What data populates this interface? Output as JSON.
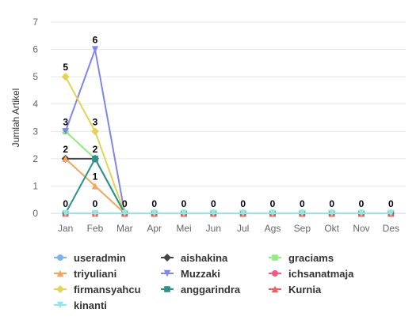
{
  "chart_data": {
    "type": "line",
    "ylabel": "Jumlah Artikel",
    "ylim": [
      0,
      7
    ],
    "yticks": [
      0,
      1,
      2,
      3,
      4,
      5,
      6,
      7
    ],
    "categories": [
      "Jan",
      "Feb",
      "Mar",
      "Apr",
      "Mei",
      "Jun",
      "Jul",
      "Ags",
      "Sep",
      "Okt",
      "Nov",
      "Des"
    ],
    "grid": "horizontal",
    "legend_position": "bottom",
    "series": [
      {
        "name": "useradmin",
        "color": "#7cb5ec",
        "marker": "circle",
        "values": [
          0,
          0,
          0,
          0,
          0,
          0,
          0,
          0,
          0,
          0,
          0,
          0
        ]
      },
      {
        "name": "aishakina",
        "color": "#434348",
        "marker": "diamond",
        "values": [
          2,
          2,
          0,
          0,
          0,
          0,
          0,
          0,
          0,
          0,
          0,
          0
        ]
      },
      {
        "name": "graciams",
        "color": "#90ed7d",
        "marker": "square",
        "values": [
          3,
          2,
          0,
          0,
          0,
          0,
          0,
          0,
          0,
          0,
          0,
          0
        ]
      },
      {
        "name": "triyuliani",
        "color": "#f7a35c",
        "marker": "triangle",
        "values": [
          2,
          1,
          0,
          0,
          0,
          0,
          0,
          0,
          0,
          0,
          0,
          0
        ]
      },
      {
        "name": "Muzzaki",
        "color": "#8085e9",
        "marker": "triangle-down",
        "values": [
          3,
          6,
          0,
          0,
          0,
          0,
          0,
          0,
          0,
          0,
          0,
          0
        ]
      },
      {
        "name": "ichsanatmaja",
        "color": "#f15c80",
        "marker": "circle",
        "values": [
          0,
          0,
          0,
          0,
          0,
          0,
          0,
          0,
          0,
          0,
          0,
          0
        ]
      },
      {
        "name": "firmansyahcu",
        "color": "#e4d354",
        "marker": "diamond",
        "values": [
          5,
          3,
          0,
          0,
          0,
          0,
          0,
          0,
          0,
          0,
          0,
          0
        ]
      },
      {
        "name": "anggarindra",
        "color": "#2b908f",
        "marker": "square",
        "values": [
          0,
          2,
          0,
          0,
          0,
          0,
          0,
          0,
          0,
          0,
          0,
          0
        ]
      },
      {
        "name": "Kurnia",
        "color": "#f45b5b",
        "marker": "triangle",
        "values": [
          0,
          0,
          0,
          0,
          0,
          0,
          0,
          0,
          0,
          0,
          0,
          0
        ]
      },
      {
        "name": "kinanti",
        "color": "#91e8e1",
        "marker": "triangle-down",
        "values": [
          0,
          0,
          0,
          0,
          0,
          0,
          0,
          0,
          0,
          0,
          0,
          0
        ]
      }
    ],
    "data_labels": [
      {
        "text": "5",
        "category": 0,
        "value": 5
      },
      {
        "text": "3",
        "category": 0,
        "value": 3
      },
      {
        "text": "2",
        "category": 0,
        "value": 2
      },
      {
        "text": "0",
        "category": 0,
        "value": 0
      },
      {
        "text": "6",
        "category": 1,
        "value": 6
      },
      {
        "text": "3",
        "category": 1,
        "value": 3
      },
      {
        "text": "2",
        "category": 1,
        "value": 2
      },
      {
        "text": "1",
        "category": 1,
        "value": 1
      },
      {
        "text": "0",
        "category": 1,
        "value": 0
      },
      {
        "text": "0",
        "category": 2,
        "value": 0
      },
      {
        "text": "0",
        "category": 3,
        "value": 0
      },
      {
        "text": "0",
        "category": 4,
        "value": 0
      },
      {
        "text": "0",
        "category": 5,
        "value": 0
      },
      {
        "text": "0",
        "category": 6,
        "value": 0
      },
      {
        "text": "0",
        "category": 7,
        "value": 0
      },
      {
        "text": "0",
        "category": 8,
        "value": 0
      },
      {
        "text": "0",
        "category": 9,
        "value": 0
      },
      {
        "text": "0",
        "category": 10,
        "value": 0
      },
      {
        "text": "0",
        "category": 11,
        "value": 0
      }
    ]
  }
}
